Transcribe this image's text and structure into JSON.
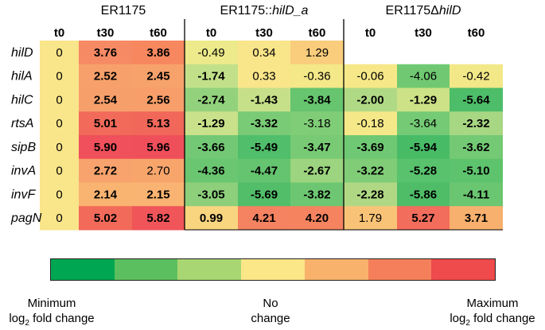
{
  "chart_data": {
    "type": "heatmap",
    "groups": [
      {
        "title_parts": [
          {
            "text": "ER1175",
            "italic": false
          }
        ]
      },
      {
        "title_parts": [
          {
            "text": "ER1175::",
            "italic": false
          },
          {
            "text": "hilD_a",
            "italic": true
          }
        ]
      },
      {
        "title_parts": [
          {
            "text": "ER1175Δ",
            "italic": false
          },
          {
            "text": "hilD",
            "italic": true
          }
        ]
      }
    ],
    "columns": [
      "t0",
      "t30",
      "t60",
      "t0",
      "t30",
      "t60",
      "t0",
      "t30",
      "t60"
    ],
    "rows": [
      "hilD",
      "hilA",
      "hilC",
      "rtsA",
      "sipB",
      "invA",
      "invF",
      "pagN"
    ],
    "values": [
      [
        0,
        3.76,
        3.86,
        -0.49,
        0.34,
        1.29,
        null,
        null,
        null
      ],
      [
        0,
        2.52,
        2.45,
        -1.74,
        0.33,
        -0.36,
        -0.06,
        -4.06,
        -0.42
      ],
      [
        0,
        2.54,
        2.56,
        -2.74,
        -1.43,
        -3.84,
        -2.0,
        -1.29,
        -5.64
      ],
      [
        0,
        5.01,
        5.13,
        -1.29,
        -3.32,
        -3.18,
        -0.18,
        -3.64,
        -2.32
      ],
      [
        0,
        5.9,
        5.96,
        -3.66,
        -5.49,
        -3.47,
        -3.69,
        -5.94,
        -3.62
      ],
      [
        0,
        2.72,
        2.7,
        -4.36,
        -4.47,
        -2.67,
        -3.22,
        -5.28,
        -5.1
      ],
      [
        0,
        2.14,
        2.15,
        -3.05,
        -5.69,
        -3.82,
        -2.28,
        -5.86,
        -4.11
      ],
      [
        0,
        5.02,
        5.82,
        0.99,
        4.21,
        4.2,
        1.79,
        5.27,
        3.71
      ]
    ],
    "labels": [
      [
        "0",
        "3.76",
        "3.86",
        "-0.49",
        "0.34",
        "1.29",
        "",
        "",
        ""
      ],
      [
        "0",
        "2.52",
        "2.45",
        "-1.74",
        "0.33",
        "-0.36",
        "-0.06",
        "-4.06",
        "-0.42"
      ],
      [
        "0",
        "2.54",
        "2.56",
        "-2.74",
        "-1.43",
        "-3.84",
        "-2.00",
        "-1.29",
        "-5.64"
      ],
      [
        "0",
        "5.01",
        "5.13",
        "-1.29",
        "-3.32",
        "-3.18",
        "-0.18",
        "-3.64",
        "-2.32"
      ],
      [
        "0",
        "5.90",
        "5.96",
        "-3.66",
        "-5.49",
        "-3.47",
        "-3.69",
        "-5.94",
        "-3.62"
      ],
      [
        "0",
        "2.72",
        "2.70",
        "-4.36",
        "-4.47",
        "-2.67",
        "-3.22",
        "-5.28",
        "-5.10"
      ],
      [
        "0",
        "2.14",
        "2.15",
        "-3.05",
        "-5.69",
        "-3.82",
        "-2.28",
        "-5.86",
        "-4.11"
      ],
      [
        "0",
        "5.02",
        "5.82",
        "0.99",
        "4.21",
        "4.20",
        "1.79",
        "5.27",
        "3.71"
      ]
    ],
    "bold": [
      [
        false,
        true,
        true,
        false,
        false,
        false,
        false,
        false,
        false
      ],
      [
        false,
        true,
        true,
        true,
        false,
        false,
        false,
        false,
        false
      ],
      [
        false,
        true,
        true,
        true,
        true,
        true,
        true,
        true,
        true
      ],
      [
        false,
        true,
        true,
        true,
        true,
        false,
        false,
        false,
        true
      ],
      [
        false,
        true,
        true,
        true,
        true,
        true,
        true,
        true,
        true
      ],
      [
        false,
        true,
        false,
        true,
        true,
        true,
        true,
        true,
        true
      ],
      [
        false,
        true,
        true,
        true,
        true,
        true,
        true,
        true,
        true
      ],
      [
        false,
        true,
        true,
        true,
        true,
        true,
        false,
        true,
        true
      ]
    ],
    "colors": [
      [
        "#f9e58a",
        "#f68a64",
        "#f6875f",
        "#ecea8a",
        "#f9e58a",
        "#f9cd7c",
        "#ffffff",
        "#ffffff",
        "#ffffff"
      ],
      [
        "#f9e58a",
        "#f7a06b",
        "#f7a26b",
        "#c2e08a",
        "#f9e58a",
        "#f4e888",
        "#f6e888",
        "#70c972",
        "#f2e888"
      ],
      [
        "#f9e58a",
        "#f79f6b",
        "#f79e6a",
        "#93d27c",
        "#c6e089",
        "#66c56e",
        "#b0d985",
        "#cde286",
        "#4dbd69"
      ],
      [
        "#f9e58a",
        "#f26a5a",
        "#f1675a",
        "#c9e18a",
        "#7acb76",
        "#80cd77",
        "#f5e889",
        "#74ca75",
        "#a8d783"
      ],
      [
        "#f9e58a",
        "#ef505b",
        "#ef4f5b",
        "#72c874",
        "#50be6a",
        "#78ca75",
        "#6fc873",
        "#48bb67",
        "#73c974"
      ],
      [
        "#f9e58a",
        "#f8a36d",
        "#f8a56c",
        "#6ac670",
        "#65c46f",
        "#9dd47f",
        "#80cc77",
        "#59c26d",
        "#5ec36d"
      ],
      [
        "#f9e58a",
        "#f9b472",
        "#f9b372",
        "#8dcf7b",
        "#52be69",
        "#6dc772",
        "#b0d884",
        "#4fbc68",
        "#6bc671"
      ],
      [
        "#f9e58a",
        "#f26a5a",
        "#ef5559",
        "#f9d57f",
        "#f58260",
        "#f58360",
        "#f9c377",
        "#f26d5b",
        "#f8b06e"
      ]
    ],
    "legend": {
      "colors": [
        "#00a651",
        "#5cbf5f",
        "#a8d672",
        "#fbe788",
        "#f8b26b",
        "#f47f5a",
        "#ef4a4c"
      ],
      "min_label_line1": "Minimum",
      "max_label_line1": "Maximum",
      "fold_change_prefix": "log",
      "fold_change_subscript": "2",
      "fold_change_suffix": " fold change",
      "mid_label_line1": "No",
      "mid_label_line2": "change"
    }
  }
}
